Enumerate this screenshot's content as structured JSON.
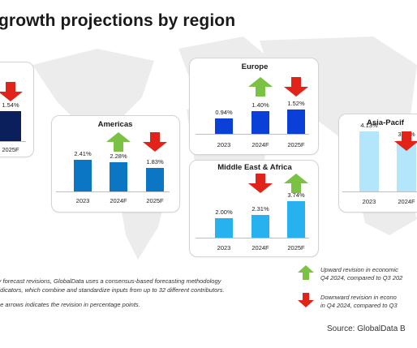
{
  "title": "growth projections by region",
  "colors": {
    "up_arrow": "#7bc143",
    "down_arrow": "#e2231a",
    "map": "#ececec"
  },
  "chart_data": [
    {
      "type": "bar",
      "title": "",
      "categories": [
        "2025F"
      ],
      "values": [
        1.54
      ],
      "value_labels": [
        "1.54%"
      ],
      "revision_arrow": "down",
      "bar_color": "#0a1f5c"
    },
    {
      "type": "bar",
      "title": "Americas",
      "categories": [
        "2023",
        "2024F",
        "2025F"
      ],
      "values": [
        2.41,
        2.28,
        1.83
      ],
      "value_labels": [
        "2.41%",
        "2.28%",
        "1.83%"
      ],
      "revisions": [
        "",
        "up",
        "down"
      ],
      "bar_color": "#0a76c4"
    },
    {
      "type": "bar",
      "title": "Europe",
      "categories": [
        "2023",
        "2024F",
        "2025F"
      ],
      "values": [
        0.94,
        1.4,
        1.52
      ],
      "value_labels": [
        "0.94%",
        "1.40%",
        "1.52%"
      ],
      "revisions": [
        "",
        "up",
        "down"
      ],
      "bar_color": "#0a3fd8"
    },
    {
      "type": "bar",
      "title": "Middle East & Africa",
      "categories": [
        "2023",
        "2024F",
        "2025F"
      ],
      "values": [
        2.0,
        2.31,
        3.74
      ],
      "value_labels": [
        "2.00%",
        "2.31%",
        "3.74%"
      ],
      "revisions": [
        "",
        "down",
        "up"
      ],
      "bar_color": "#27b1ef"
    },
    {
      "type": "bar",
      "title": "Asia-Pacif",
      "categories": [
        "2023",
        "2024F"
      ],
      "values": [
        4.13,
        3.51
      ],
      "value_labels": [
        "4.13%",
        "3.51%"
      ],
      "revisions": [
        "",
        "down"
      ],
      "bar_color": "#b4e6fb"
    }
  ],
  "legend": {
    "up_line1": "Upward revision in economic",
    "up_line2": "Q4 2024,  compared to Q3 202",
    "down_line1": "Downward revision in econo",
    "down_line2": "in Q4 2024,  compared to Q3"
  },
  "notes": {
    "line1": "ly forecast revisions, GlobalData uses a consensus-based forecasting methodology",
    "line2": "ndicators, which combine and standardize inputs from up to 32 different contributors.",
    "line3": "he arrows indicates the revision in percentage points."
  },
  "source": "Source: GlobalData B"
}
